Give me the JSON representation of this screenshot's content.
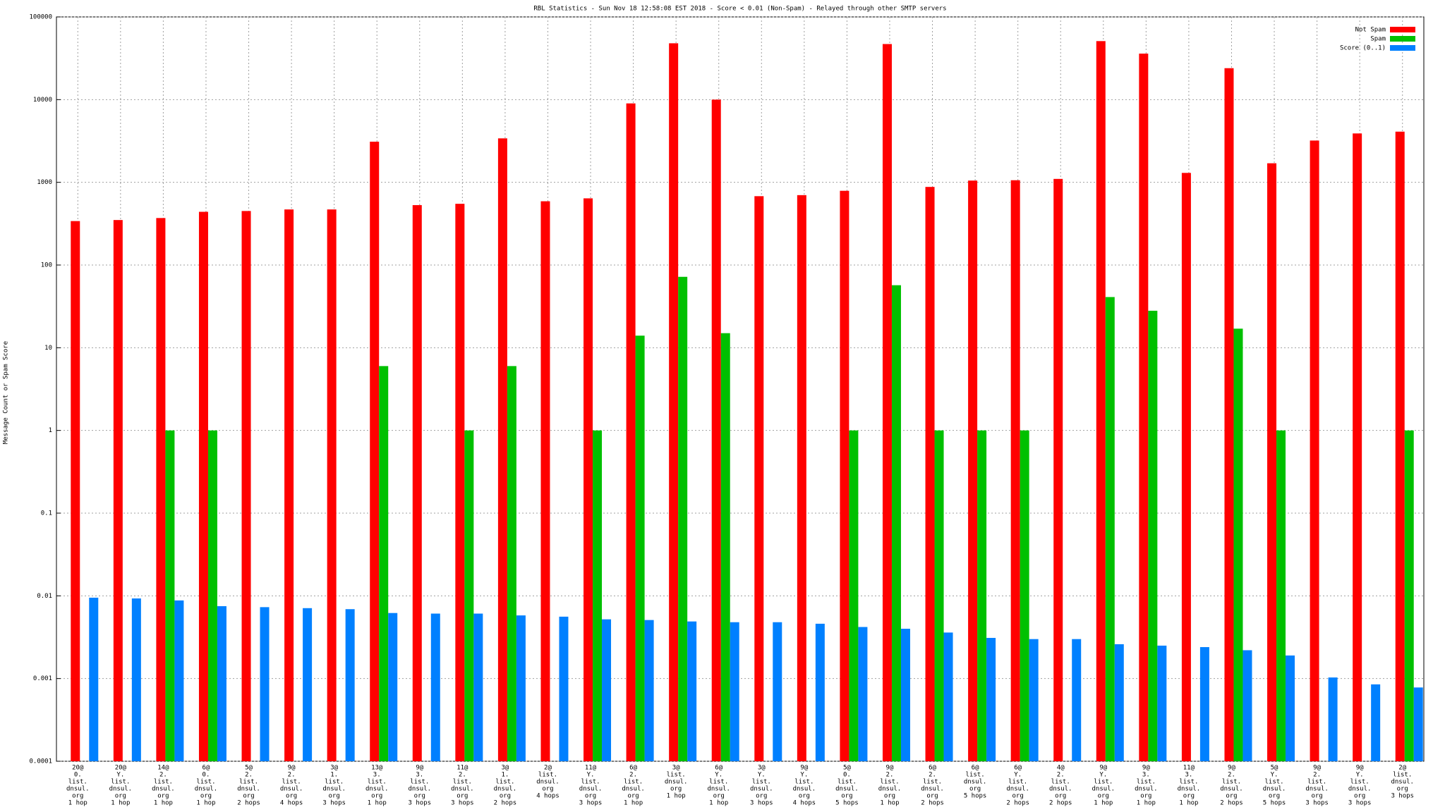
{
  "chart_data": {
    "type": "bar",
    "title": "RBL Statistics - Sun Nov 18 12:58:08 EST 2018 - Score < 0.01 (Non-Spam) - Relayed through other SMTP servers",
    "y_label": "Message Count or Spam Score",
    "log_scale": true,
    "grid": true,
    "legend": "top-right",
    "categories": [
      [
        "20@",
        "0.",
        "list.",
        "dnsul.",
        "org",
        "1 hop"
      ],
      [
        "20@",
        "Y.",
        "list.",
        "dnsul.",
        "org",
        "1 hop"
      ],
      [
        "14@",
        "2.",
        "list.",
        "dnsul.",
        "org",
        "1 hop"
      ],
      [
        "6@",
        "0.",
        "list.",
        "dnsul.",
        "org",
        "1 hop"
      ],
      [
        "5@",
        "2.",
        "list.",
        "dnsul.",
        "org",
        "2 hops"
      ],
      [
        "9@",
        "2.",
        "list.",
        "dnsul.",
        "org",
        "4 hops"
      ],
      [
        "3@",
        "1.",
        "list.",
        "dnsul.",
        "org",
        "3 hops"
      ],
      [
        "13@",
        "3.",
        "list.",
        "dnsul.",
        "org",
        "1 hop"
      ],
      [
        "9@",
        "3.",
        "list.",
        "dnsul.",
        "org",
        "3 hops"
      ],
      [
        "11@",
        "2.",
        "list.",
        "dnsul.",
        "org",
        "3 hops"
      ],
      [
        "3@",
        "1.",
        "list.",
        "dnsul.",
        "org",
        "2 hops"
      ],
      [
        "2@",
        "list.",
        "dnsul.",
        "org",
        "4 hops"
      ],
      [
        "11@",
        "Y.",
        "list.",
        "dnsul.",
        "org",
        "3 hops"
      ],
      [
        "6@",
        "2.",
        "list.",
        "dnsul.",
        "org",
        "1 hop"
      ],
      [
        "3@",
        "list.",
        "dnsul.",
        "org",
        "1 hop"
      ],
      [
        "6@",
        "Y.",
        "list.",
        "dnsul.",
        "org",
        "1 hop"
      ],
      [
        "3@",
        "Y.",
        "list.",
        "dnsul.",
        "org",
        "3 hops"
      ],
      [
        "9@",
        "Y.",
        "list.",
        "dnsul.",
        "org",
        "4 hops"
      ],
      [
        "5@",
        "0.",
        "list.",
        "dnsul.",
        "org",
        "5 hops"
      ],
      [
        "9@",
        "2.",
        "list.",
        "dnsul.",
        "org",
        "1 hop"
      ],
      [
        "6@",
        "2.",
        "list.",
        "dnsul.",
        "org",
        "2 hops"
      ],
      [
        "6@",
        "list.",
        "dnsul.",
        "org",
        "5 hops"
      ],
      [
        "6@",
        "Y.",
        "list.",
        "dnsul.",
        "org",
        "2 hops"
      ],
      [
        "4@",
        "2.",
        "list.",
        "dnsul.",
        "org",
        "2 hops"
      ],
      [
        "9@",
        "Y.",
        "list.",
        "dnsul.",
        "org",
        "1 hop"
      ],
      [
        "9@",
        "3.",
        "list.",
        "dnsul.",
        "org",
        "1 hop"
      ],
      [
        "11@",
        "3.",
        "list.",
        "dnsul.",
        "org",
        "1 hop"
      ],
      [
        "9@",
        "2.",
        "list.",
        "dnsul.",
        "org",
        "2 hops"
      ],
      [
        "5@",
        "Y.",
        "list.",
        "dnsul.",
        "org",
        "5 hops"
      ],
      [
        "9@",
        "2.",
        "list.",
        "dnsul.",
        "org",
        "3 hops"
      ],
      [
        "9@",
        "Y.",
        "list.",
        "dnsul.",
        "org",
        "3 hops"
      ],
      [
        "2@",
        "list.",
        "dnsul.",
        "org",
        "3 hops"
      ]
    ],
    "series": [
      {
        "name": "Not Spam",
        "color": "#ff0000",
        "values": [
          340,
          350,
          370,
          440,
          450,
          470,
          470,
          3100,
          530,
          550,
          3400,
          590,
          640,
          9000,
          48000,
          10000,
          680,
          700,
          790,
          47000,
          880,
          1050,
          1060,
          1100,
          51000,
          36000,
          1300,
          24000,
          1700,
          3200,
          3900,
          4100
        ]
      },
      {
        "name": "Spam",
        "color": "#00c000",
        "values": [
          null,
          null,
          1,
          1,
          null,
          null,
          null,
          6,
          null,
          1,
          6,
          null,
          1,
          14,
          72,
          15,
          null,
          null,
          1,
          57,
          1,
          1,
          1,
          null,
          41,
          28,
          null,
          17,
          1,
          null,
          null,
          1
        ]
      },
      {
        "name": "Score (0..1)",
        "color": "#0080ff",
        "values": [
          0.0095,
          0.0093,
          0.0088,
          0.0075,
          0.0073,
          0.0071,
          0.0069,
          0.0062,
          0.0061,
          0.0061,
          0.0058,
          0.0056,
          0.0052,
          0.0051,
          0.0049,
          0.0048,
          0.0048,
          0.0046,
          0.0042,
          0.004,
          0.0036,
          0.0031,
          0.003,
          0.003,
          0.0026,
          0.0025,
          0.0024,
          0.0022,
          0.0019,
          0.00103,
          0.00085,
          0.00078
        ]
      }
    ],
    "ylim": [
      0.0001,
      100000
    ],
    "yticks": [
      0.0001,
      0.001,
      0.01,
      0.1,
      1,
      10,
      100,
      1000,
      10000,
      100000
    ]
  }
}
